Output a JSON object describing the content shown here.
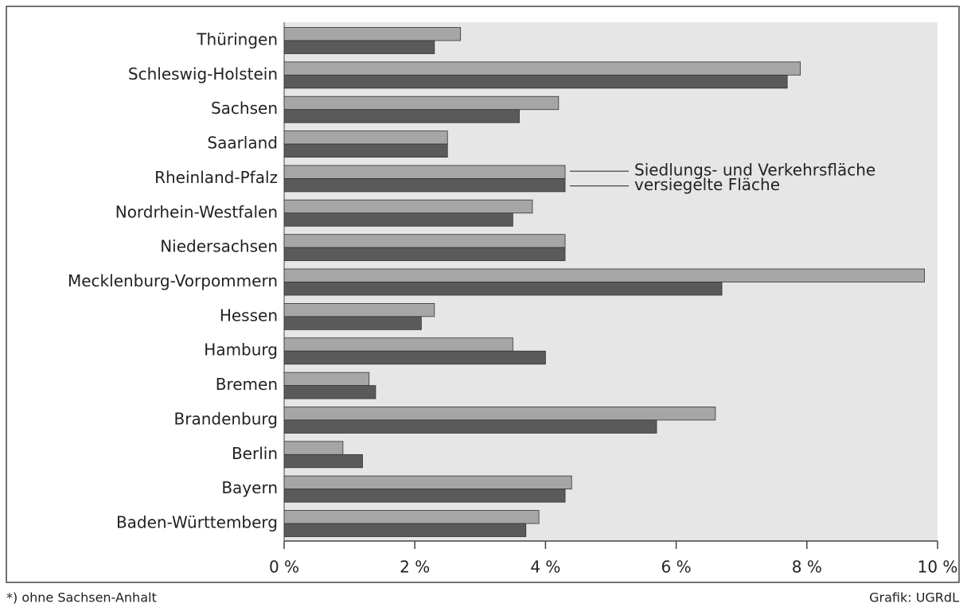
{
  "chart_data": {
    "type": "hbar",
    "categories": [
      "Thüringen",
      "Schleswig-Holstein",
      "Sachsen",
      "Saarland",
      "Rheinland-Pfalz",
      "Nordrhein-Westfalen",
      "Niedersachsen",
      "Mecklenburg-Vorpommern",
      "Hessen",
      "Hamburg",
      "Bremen",
      "Brandenburg",
      "Berlin",
      "Bayern",
      "Baden-Württemberg"
    ],
    "series": [
      {
        "name": "Siedlungs- und Verkehrsfläche",
        "color": "#a6a6a6",
        "values": [
          2.7,
          7.9,
          4.2,
          2.5,
          4.3,
          3.8,
          4.3,
          9.8,
          2.3,
          3.5,
          1.3,
          6.6,
          0.9,
          4.4,
          3.9
        ]
      },
      {
        "name": "versiegelte Fläche",
        "color": "#5a5a5a",
        "values": [
          2.3,
          7.7,
          3.6,
          2.5,
          4.3,
          3.5,
          4.3,
          6.7,
          2.1,
          4.0,
          1.4,
          5.7,
          1.2,
          4.3,
          3.7
        ]
      }
    ],
    "xlim": [
      0,
      10
    ],
    "xticks": [
      {
        "value": 0,
        "label": "0 %"
      },
      {
        "value": 2,
        "label": "2 %"
      },
      {
        "value": 4,
        "label": "4 %"
      },
      {
        "value": 6,
        "label": "6 %"
      },
      {
        "value": 8,
        "label": "8 %"
      },
      {
        "value": 10,
        "label": "10 %"
      }
    ],
    "annotations": [
      "*) ohne Sachsen-Anhalt",
      "Grafik: UGRdL"
    ],
    "background": "#e6e6e6"
  }
}
